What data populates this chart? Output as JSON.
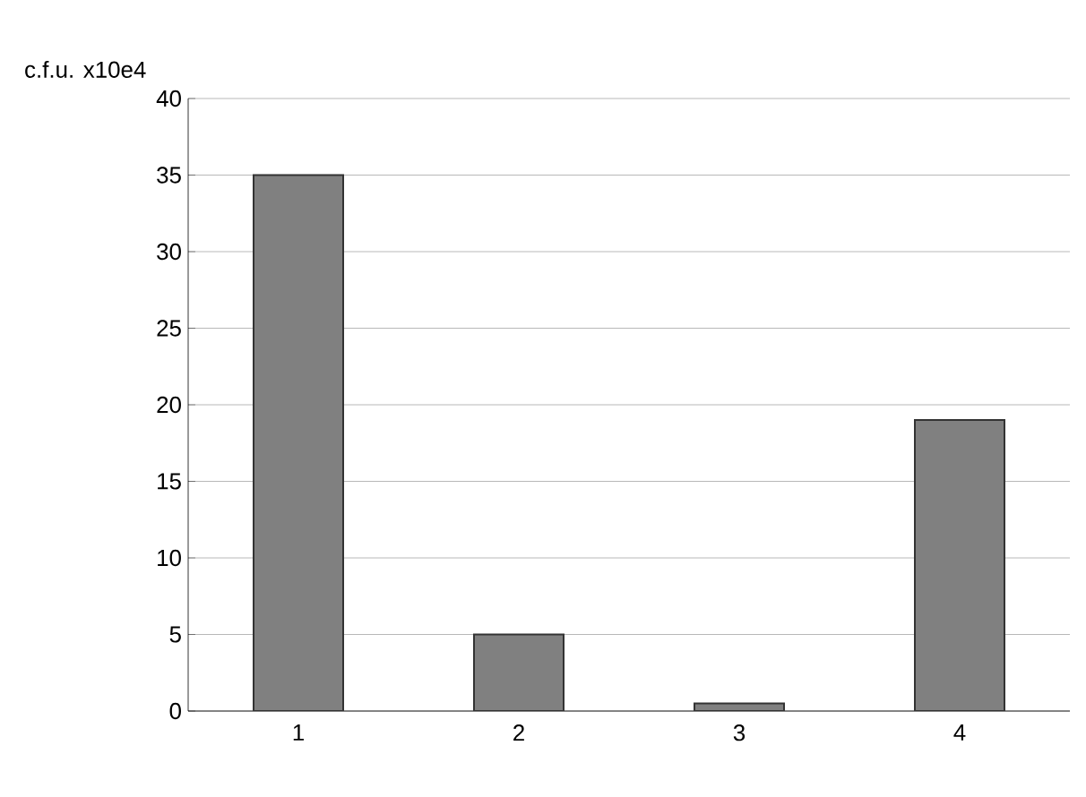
{
  "chart_data": {
    "type": "bar",
    "ylabel": "c.f.u. x10e4",
    "categories": [
      "1",
      "2",
      "3",
      "4"
    ],
    "values": [
      35,
      5,
      0.5,
      19
    ],
    "color": "#808080",
    "ylim": [
      0,
      40
    ],
    "yticks": [
      0,
      5,
      10,
      15,
      20,
      25,
      30,
      35,
      40
    ],
    "grid": "y"
  }
}
